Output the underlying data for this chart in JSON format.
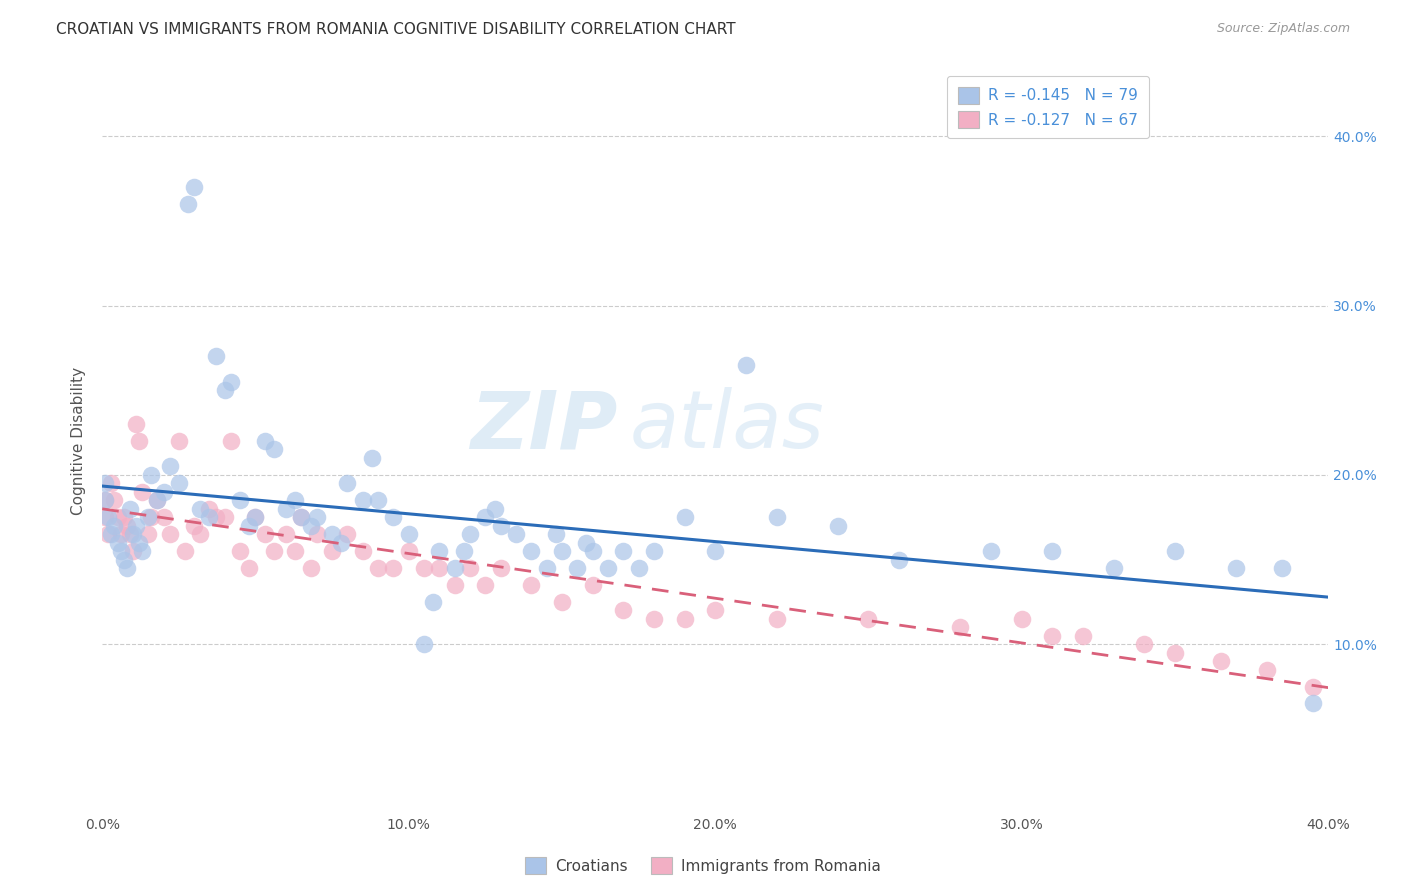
{
  "title": "CROATIAN VS IMMIGRANTS FROM ROMANIA COGNITIVE DISABILITY CORRELATION CHART",
  "source": "Source: ZipAtlas.com",
  "ylabel": "Cognitive Disability",
  "y_ticks": [
    0.1,
    0.2,
    0.3,
    0.4
  ],
  "y_tick_labels": [
    "10.0%",
    "20.0%",
    "30.0%",
    "40.0%"
  ],
  "xlim": [
    0.0,
    0.4
  ],
  "ylim": [
    0.0,
    0.44
  ],
  "croatian_color": "#aac4e8",
  "romania_color": "#f2afc4",
  "croatian_line_color": "#2b6cb8",
  "romania_line_color": "#d9607a",
  "legend_label_1": "R = -0.145   N = 79",
  "legend_label_2": "R = -0.127   N = 67",
  "legend_croatians": "Croatians",
  "legend_romania": "Immigrants from Romania",
  "watermark_zip": "ZIP",
  "watermark_atlas": "atlas",
  "background_color": "#ffffff",
  "grid_color": "#cccccc",
  "croatian_x": [
    0.001,
    0.001,
    0.002,
    0.003,
    0.004,
    0.005,
    0.006,
    0.007,
    0.008,
    0.009,
    0.01,
    0.011,
    0.012,
    0.013,
    0.015,
    0.016,
    0.018,
    0.02,
    0.022,
    0.025,
    0.028,
    0.03,
    0.032,
    0.035,
    0.037,
    0.04,
    0.042,
    0.045,
    0.048,
    0.05,
    0.053,
    0.056,
    0.06,
    0.063,
    0.065,
    0.068,
    0.07,
    0.075,
    0.078,
    0.08,
    0.085,
    0.088,
    0.09,
    0.095,
    0.1,
    0.105,
    0.108,
    0.11,
    0.115,
    0.118,
    0.12,
    0.125,
    0.128,
    0.13,
    0.135,
    0.14,
    0.145,
    0.148,
    0.15,
    0.155,
    0.158,
    0.16,
    0.165,
    0.17,
    0.175,
    0.18,
    0.19,
    0.2,
    0.21,
    0.22,
    0.24,
    0.26,
    0.29,
    0.31,
    0.33,
    0.35,
    0.37,
    0.385,
    0.395
  ],
  "croatian_y": [
    0.185,
    0.195,
    0.175,
    0.165,
    0.17,
    0.16,
    0.155,
    0.15,
    0.145,
    0.18,
    0.165,
    0.17,
    0.16,
    0.155,
    0.175,
    0.2,
    0.185,
    0.19,
    0.205,
    0.195,
    0.36,
    0.37,
    0.18,
    0.175,
    0.27,
    0.25,
    0.255,
    0.185,
    0.17,
    0.175,
    0.22,
    0.215,
    0.18,
    0.185,
    0.175,
    0.17,
    0.175,
    0.165,
    0.16,
    0.195,
    0.185,
    0.21,
    0.185,
    0.175,
    0.165,
    0.1,
    0.125,
    0.155,
    0.145,
    0.155,
    0.165,
    0.175,
    0.18,
    0.17,
    0.165,
    0.155,
    0.145,
    0.165,
    0.155,
    0.145,
    0.16,
    0.155,
    0.145,
    0.155,
    0.145,
    0.155,
    0.175,
    0.155,
    0.265,
    0.175,
    0.17,
    0.15,
    0.155,
    0.155,
    0.145,
    0.155,
    0.145,
    0.145,
    0.065
  ],
  "romania_x": [
    0.001,
    0.001,
    0.002,
    0.003,
    0.004,
    0.005,
    0.006,
    0.007,
    0.008,
    0.009,
    0.01,
    0.011,
    0.012,
    0.013,
    0.015,
    0.016,
    0.018,
    0.02,
    0.022,
    0.025,
    0.027,
    0.03,
    0.032,
    0.035,
    0.037,
    0.04,
    0.042,
    0.045,
    0.048,
    0.05,
    0.053,
    0.056,
    0.06,
    0.063,
    0.065,
    0.068,
    0.07,
    0.075,
    0.08,
    0.085,
    0.09,
    0.095,
    0.1,
    0.105,
    0.11,
    0.115,
    0.12,
    0.125,
    0.13,
    0.14,
    0.15,
    0.16,
    0.17,
    0.18,
    0.19,
    0.2,
    0.22,
    0.25,
    0.28,
    0.3,
    0.31,
    0.32,
    0.34,
    0.35,
    0.365,
    0.38,
    0.395
  ],
  "romania_y": [
    0.185,
    0.175,
    0.165,
    0.195,
    0.185,
    0.175,
    0.165,
    0.175,
    0.17,
    0.165,
    0.155,
    0.23,
    0.22,
    0.19,
    0.165,
    0.175,
    0.185,
    0.175,
    0.165,
    0.22,
    0.155,
    0.17,
    0.165,
    0.18,
    0.175,
    0.175,
    0.22,
    0.155,
    0.145,
    0.175,
    0.165,
    0.155,
    0.165,
    0.155,
    0.175,
    0.145,
    0.165,
    0.155,
    0.165,
    0.155,
    0.145,
    0.145,
    0.155,
    0.145,
    0.145,
    0.135,
    0.145,
    0.135,
    0.145,
    0.135,
    0.125,
    0.135,
    0.12,
    0.115,
    0.115,
    0.12,
    0.115,
    0.115,
    0.11,
    0.115,
    0.105,
    0.105,
    0.1,
    0.095,
    0.09,
    0.085,
    0.075
  ]
}
